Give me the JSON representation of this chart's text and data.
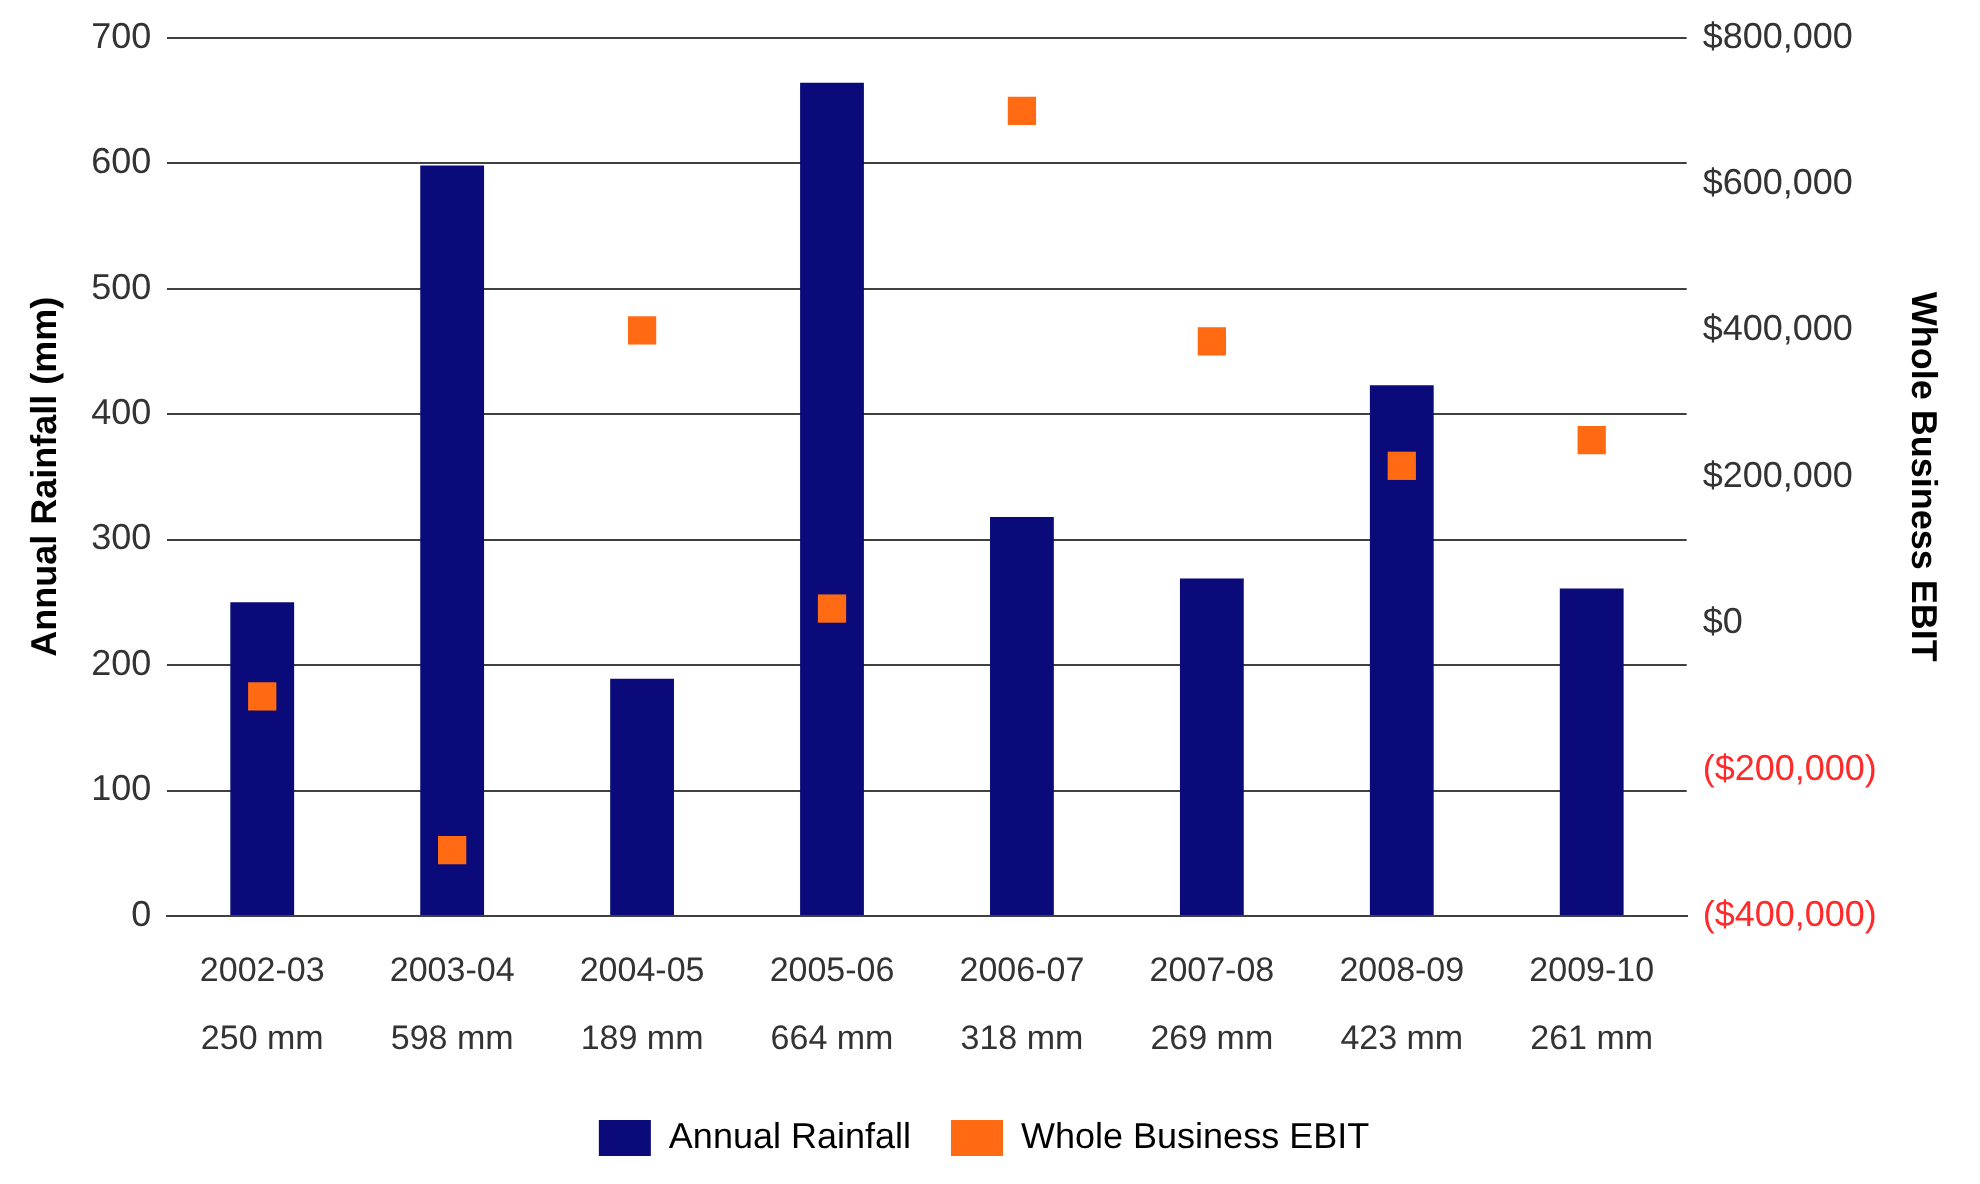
{
  "chart_data": {
    "type": "bar",
    "ylabel": "Annual Rainfall (mm)",
    "y2label": "Whole Business EBIT",
    "categories": [
      "2002-03",
      "2003-04",
      "2004-05",
      "2005-06",
      "2006-07",
      "2007-08",
      "2008-09",
      "2009-10"
    ],
    "series": [
      {
        "name": "Annual Rainfall",
        "color": "#0a0a7a",
        "values": [
          250,
          598,
          189,
          664,
          318,
          269,
          423,
          261
        ],
        "value_labels": [
          "250 mm",
          "598 mm",
          "189 mm",
          "664 mm",
          "318 mm",
          "269 mm",
          "423 mm",
          "261 mm"
        ]
      },
      {
        "name": "Whole Business EBIT",
        "type": "scatter",
        "axis": "y2",
        "color": "#ff6a13",
        "values": [
          -100000,
          -310000,
          400000,
          20000,
          700000,
          385000,
          215000,
          250000
        ]
      }
    ],
    "ylim": [
      0,
      700
    ],
    "yticks": [
      0,
      100,
      200,
      300,
      400,
      500,
      600,
      700
    ],
    "y2lim": [
      -400000,
      800000
    ],
    "y2ticks": [
      {
        "value": -400000,
        "label": "($400,000)"
      },
      {
        "value": -200000,
        "label": "($200,000)"
      },
      {
        "value": 0,
        "label": "$0"
      },
      {
        "value": 200000,
        "label": "$200,000"
      },
      {
        "value": 400000,
        "label": "$400,000"
      },
      {
        "value": 600000,
        "label": "$600,000"
      },
      {
        "value": 800000,
        "label": "$800,000"
      }
    ],
    "grid": "y",
    "legend": "bottom",
    "marker": "square"
  }
}
